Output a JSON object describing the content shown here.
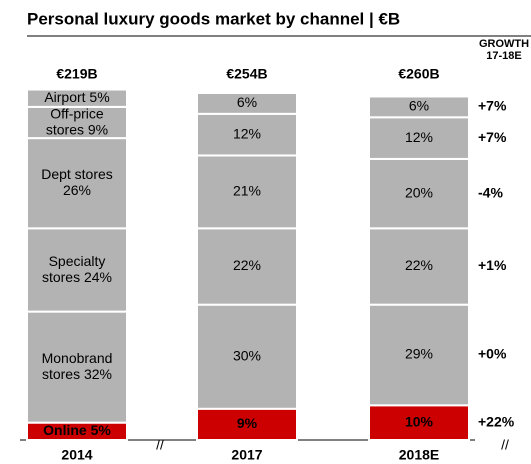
{
  "chart_data": {
    "type": "stacked_bar_100",
    "title": "Personal luxury goods market by channel | €B",
    "growth_header": [
      "GROWTH",
      "17-18E"
    ],
    "categories": [
      "2014",
      "2017",
      "2018E"
    ],
    "totals": [
      "€219B",
      "€254B",
      "€260B"
    ],
    "series": [
      {
        "color": "#cc0000",
        "values": [
          5,
          9,
          10
        ],
        "value_labels": [
          "Online 5%",
          "9%",
          "10%"
        ],
        "growth": "+22%"
      },
      {
        "color": "#b3b3b3",
        "values": [
          32,
          30,
          29
        ],
        "value_labels": [
          "Monobrand\nstores 32%",
          "30%",
          "29%"
        ],
        "growth": "+0%"
      },
      {
        "color": "#b3b3b3",
        "values": [
          24,
          22,
          22
        ],
        "value_labels": [
          "Specialty\nstores 24%",
          "22%",
          "22%"
        ],
        "growth": "+1%"
      },
      {
        "color": "#b3b3b3",
        "values": [
          26,
          21,
          20
        ],
        "value_labels": [
          "Dept stores\n26%",
          "21%",
          "20%"
        ],
        "growth": "-4%"
      },
      {
        "color": "#b3b3b3",
        "values": [
          9,
          12,
          12
        ],
        "value_labels": [
          "Off-price\nstores 9%",
          "12%",
          "12%"
        ],
        "growth": "+7%"
      },
      {
        "color": "#b3b3b3",
        "values": [
          5,
          6,
          6
        ],
        "value_labels": [
          "Airport 5%",
          "6%",
          "6%"
        ],
        "growth": "+7%"
      }
    ]
  }
}
